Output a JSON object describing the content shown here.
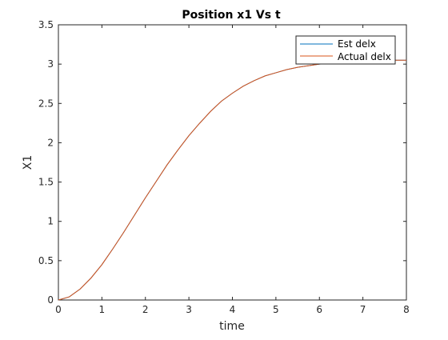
{
  "chart_data": {
    "type": "line",
    "title": "Position x1 Vs t",
    "xlabel": "time",
    "ylabel": "X1",
    "xlim": [
      0,
      8
    ],
    "ylim": [
      0,
      3.5
    ],
    "xticks": [
      "0",
      "1",
      "2",
      "3",
      "4",
      "5",
      "6",
      "7",
      "8"
    ],
    "yticks": [
      "0",
      "0.5",
      "1",
      "1.5",
      "2",
      "2.5",
      "3",
      "3.5"
    ],
    "grid": false,
    "legend_position": "top-right",
    "x": [
      0,
      0.25,
      0.5,
      0.75,
      1,
      1.25,
      1.5,
      1.75,
      2,
      2.25,
      2.5,
      2.75,
      3,
      3.25,
      3.5,
      3.75,
      4,
      4.25,
      4.5,
      4.75,
      5,
      5.25,
      5.5,
      5.75,
      6,
      6.25,
      6.5,
      6.75,
      7,
      7.25,
      7.5,
      7.75,
      8
    ],
    "series": [
      {
        "name": "Est delx",
        "color": "#0072BD",
        "values": [
          0,
          0.04,
          0.14,
          0.28,
          0.45,
          0.65,
          0.86,
          1.08,
          1.3,
          1.51,
          1.72,
          1.91,
          2.09,
          2.25,
          2.4,
          2.53,
          2.63,
          2.72,
          2.79,
          2.85,
          2.89,
          2.93,
          2.96,
          2.98,
          3.0,
          3.01,
          3.02,
          3.03,
          3.04,
          3.04,
          3.05,
          3.05,
          3.05
        ]
      },
      {
        "name": "Actual delx",
        "color": "#D95319",
        "values": [
          0,
          0.04,
          0.14,
          0.28,
          0.45,
          0.65,
          0.86,
          1.08,
          1.3,
          1.51,
          1.72,
          1.91,
          2.09,
          2.25,
          2.4,
          2.53,
          2.63,
          2.72,
          2.79,
          2.85,
          2.89,
          2.93,
          2.96,
          2.98,
          3.0,
          3.01,
          3.02,
          3.03,
          3.04,
          3.04,
          3.05,
          3.05,
          3.05
        ]
      }
    ]
  }
}
